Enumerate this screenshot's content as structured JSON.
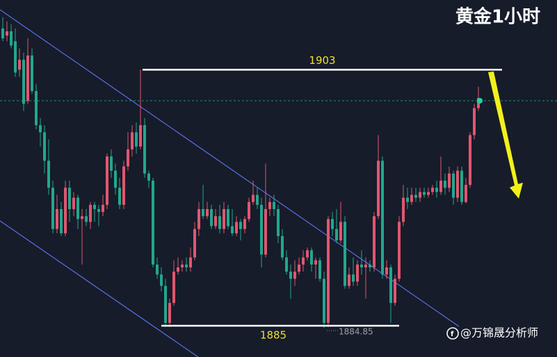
{
  "chart_data": {
    "type": "candlestick",
    "title": "黄金1小时",
    "watermark": "@万锦晟分析师",
    "levels": [
      1903,
      1885
    ],
    "low_value": 1884.85,
    "ylim": [
      1882.8,
      1907.9
    ],
    "up_color": "#e2566f",
    "down_color": "#22a78e",
    "open": [
      1905.9,
      1905.4,
      1905.7,
      1905.0,
      1903.0,
      1903.7,
      1900.8,
      1904.0,
      1901.5,
      1899.1,
      1898.6,
      1896.6,
      1894.7,
      1891.8,
      1893.2,
      1891.5,
      1894.7,
      1893.2,
      1894.0,
      1892.5,
      1892.7,
      1892.3,
      1893.5,
      1893.2,
      1893.0,
      1893.5,
      1896.9,
      1895.9,
      1894.7,
      1893.5,
      1896.2,
      1897.4,
      1898.6,
      1897.6,
      1899.1,
      1895.7,
      1895.2,
      1889.3,
      1888.6,
      1887.8,
      1885.2,
      1886.6,
      1888.8,
      1889.1,
      1889.3,
      1889.1,
      1889.8,
      1891.8,
      1893.2,
      1892.7,
      1893.2,
      1892.0,
      1892.7,
      1891.8,
      1893.2,
      1892.0,
      1891.5,
      1892.3,
      1891.8,
      1892.5,
      1893.7,
      1894.2,
      1893.5,
      1890.0,
      1893.2,
      1893.7,
      1893.2,
      1891.3,
      1889.8,
      1888.8,
      1888.3,
      1888.8,
      1889.3,
      1889.8,
      1890.3,
      1889.3,
      1889.6,
      1888.3,
      1885.2,
      1892.5,
      1891.8,
      1891.0,
      1892.3,
      1887.8,
      1888.6,
      1888.1,
      1889.3,
      1889.1,
      1889.3,
      1889.1,
      1892.7,
      1896.6,
      1888.6,
      1889.1,
      1886.6,
      1888.3,
      1892.3,
      1894.0,
      1893.7,
      1894.2,
      1894.0,
      1894.4,
      1894.2,
      1894.4,
      1894.7,
      1894.4,
      1895.2,
      1894.7,
      1895.7,
      1894.0,
      1895.9,
      1893.7,
      1894.9,
      1898.4,
      1900.3
    ],
    "high": [
      1906.7,
      1906.4,
      1906.2,
      1905.9,
      1904.5,
      1904.2,
      1905.2,
      1904.5,
      1902.0,
      1899.6,
      1899.1,
      1898.1,
      1895.2,
      1894.2,
      1893.7,
      1895.2,
      1895.2,
      1894.4,
      1894.2,
      1893.2,
      1893.2,
      1893.7,
      1893.7,
      1893.5,
      1894.2,
      1897.1,
      1897.4,
      1896.4,
      1895.4,
      1896.6,
      1898.6,
      1899.1,
      1899.3,
      1903.0,
      1899.6,
      1895.9,
      1895.4,
      1889.8,
      1889.1,
      1888.3,
      1886.9,
      1889.6,
      1889.8,
      1889.6,
      1889.8,
      1890.5,
      1892.3,
      1893.7,
      1894.9,
      1893.7,
      1893.5,
      1893.2,
      1893.5,
      1893.7,
      1893.5,
      1893.2,
      1892.7,
      1892.5,
      1892.7,
      1894.0,
      1895.2,
      1894.7,
      1894.0,
      1896.4,
      1894.0,
      1894.2,
      1893.5,
      1891.8,
      1890.3,
      1889.3,
      1889.6,
      1889.8,
      1890.3,
      1890.5,
      1890.5,
      1889.8,
      1889.8,
      1888.8,
      1892.7,
      1893.0,
      1893.2,
      1893.7,
      1892.7,
      1889.1,
      1889.8,
      1889.6,
      1890.3,
      1889.8,
      1889.6,
      1893.0,
      1898.4,
      1896.9,
      1889.6,
      1889.3,
      1888.6,
      1892.7,
      1894.9,
      1894.7,
      1894.7,
      1894.7,
      1894.7,
      1894.7,
      1894.7,
      1894.9,
      1895.2,
      1896.9,
      1895.7,
      1896.2,
      1895.9,
      1896.2,
      1896.2,
      1895.4,
      1898.6,
      1900.6,
      1901.8
    ],
    "low": [
      1905.0,
      1905.0,
      1904.5,
      1902.5,
      1902.5,
      1900.1,
      1900.6,
      1901.3,
      1898.8,
      1897.6,
      1895.7,
      1894.2,
      1891.5,
      1891.5,
      1891.3,
      1891.3,
      1892.3,
      1892.7,
      1891.8,
      1889.3,
      1892.0,
      1891.8,
      1892.3,
      1892.0,
      1892.7,
      1893.2,
      1895.4,
      1894.2,
      1893.2,
      1893.2,
      1895.9,
      1896.9,
      1897.1,
      1897.4,
      1895.4,
      1894.7,
      1889.1,
      1888.3,
      1887.4,
      1884.9,
      1884.9,
      1886.4,
      1888.6,
      1888.8,
      1888.8,
      1888.8,
      1889.6,
      1891.3,
      1892.5,
      1892.5,
      1891.8,
      1891.8,
      1891.5,
      1891.5,
      1891.8,
      1891.3,
      1891.3,
      1891.0,
      1891.5,
      1892.3,
      1893.5,
      1893.2,
      1889.1,
      1889.8,
      1892.7,
      1892.7,
      1890.8,
      1889.6,
      1888.6,
      1886.9,
      1887.8,
      1888.6,
      1888.8,
      1889.6,
      1888.8,
      1888.3,
      1888.1,
      1884.85,
      1884.9,
      1891.3,
      1890.8,
      1890.8,
      1887.6,
      1887.6,
      1887.8,
      1887.8,
      1888.6,
      1886.9,
      1888.8,
      1888.8,
      1892.5,
      1888.3,
      1888.3,
      1885.2,
      1886.4,
      1888.1,
      1892.0,
      1893.2,
      1893.5,
      1893.7,
      1893.7,
      1894.0,
      1894.0,
      1894.2,
      1894.0,
      1894.2,
      1894.2,
      1894.4,
      1893.5,
      1893.7,
      1893.5,
      1893.6,
      1894.7,
      1898.1,
      1900.1
    ],
    "close": [
      1905.2,
      1905.7,
      1904.7,
      1902.8,
      1903.7,
      1900.6,
      1904.0,
      1901.5,
      1899.1,
      1898.6,
      1896.6,
      1894.7,
      1891.8,
      1893.2,
      1891.5,
      1894.7,
      1893.2,
      1894.0,
      1892.5,
      1892.7,
      1892.3,
      1893.5,
      1893.2,
      1893.0,
      1893.5,
      1896.9,
      1895.9,
      1894.7,
      1893.5,
      1896.2,
      1897.4,
      1898.6,
      1897.6,
      1899.1,
      1895.7,
      1895.2,
      1889.3,
      1888.6,
      1887.8,
      1885.2,
      1886.6,
      1888.8,
      1889.1,
      1889.3,
      1889.1,
      1889.8,
      1891.8,
      1893.2,
      1892.7,
      1893.2,
      1892.0,
      1892.7,
      1891.8,
      1893.2,
      1892.0,
      1891.5,
      1892.3,
      1891.8,
      1892.5,
      1893.7,
      1894.2,
      1893.5,
      1890.0,
      1893.2,
      1893.7,
      1893.2,
      1891.3,
      1889.8,
      1888.8,
      1888.3,
      1888.8,
      1889.3,
      1889.8,
      1890.3,
      1889.3,
      1889.6,
      1888.3,
      1885.2,
      1892.5,
      1891.8,
      1891.0,
      1892.3,
      1887.8,
      1888.6,
      1888.1,
      1889.3,
      1889.1,
      1889.3,
      1889.1,
      1892.7,
      1896.6,
      1888.6,
      1889.1,
      1886.6,
      1888.3,
      1892.3,
      1894.0,
      1893.7,
      1894.2,
      1894.0,
      1894.4,
      1894.2,
      1894.4,
      1894.7,
      1894.4,
      1895.2,
      1894.7,
      1895.7,
      1894.0,
      1895.9,
      1893.7,
      1894.9,
      1898.4,
      1900.3,
      1901.0
    ]
  }
}
